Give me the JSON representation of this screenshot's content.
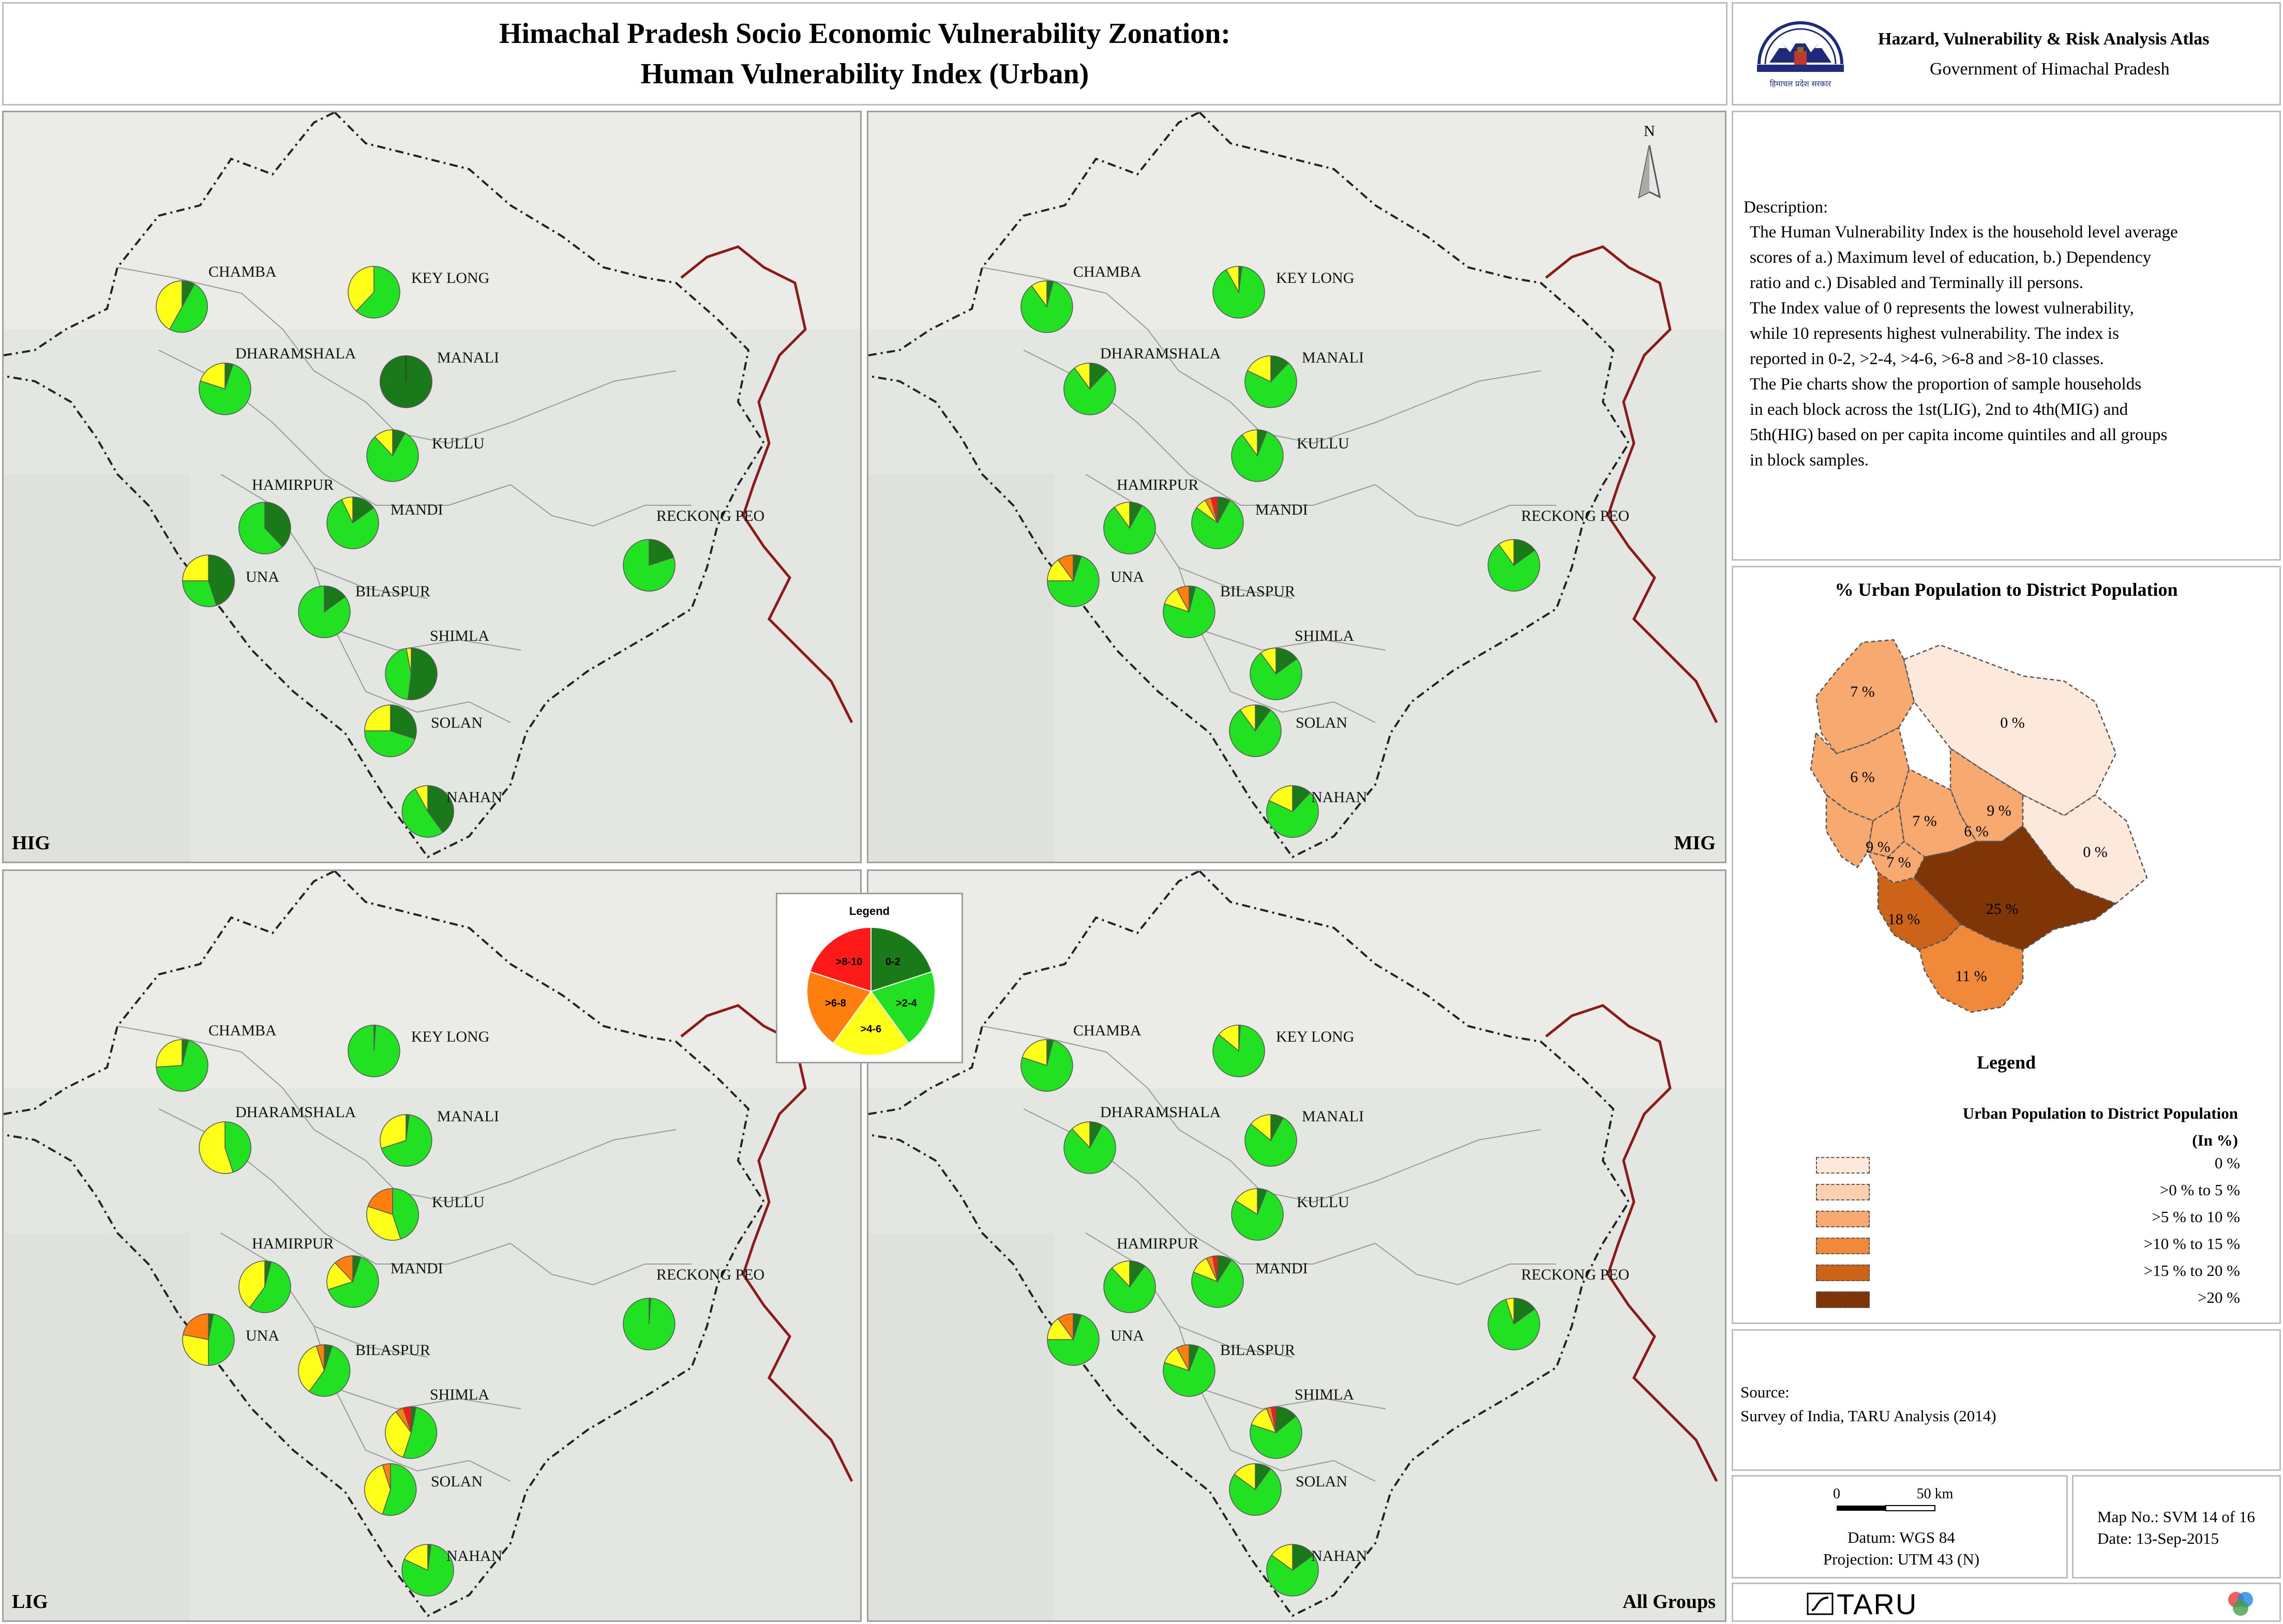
{
  "title": {
    "line1": "Himachal Pradesh Socio Economic Vulnerability Zonation:",
    "line2": "Human Vulnerability Index (Urban)"
  },
  "header": {
    "atlas": "Hazard, Vulnerability & Risk Analysis Atlas",
    "government": "Government of Himachal Pradesh",
    "emblem_caption": "हिमाचल प्रदेश सरकार"
  },
  "north_label": "N",
  "panels": [
    {
      "id": "hig",
      "label": "HIG"
    },
    {
      "id": "mig",
      "label": "MIG"
    },
    {
      "id": "lig",
      "label": "LIG"
    },
    {
      "id": "all",
      "label": "All Groups"
    }
  ],
  "class_legend": {
    "title": "Legend",
    "classes": [
      {
        "label": "0-2",
        "color": "#1a7a1a"
      },
      {
        "label": ">2-4",
        "color": "#22e022"
      },
      {
        "label": ">4-6",
        "color": "#ffff1a"
      },
      {
        "label": ">6-8",
        "color": "#ff7f0e"
      },
      {
        "label": ">8-10",
        "color": "#ff1a1a"
      }
    ]
  },
  "map_data": {
    "towns": [
      "CHAMBA",
      "KEY LONG",
      "DHARAMSHALA",
      "MANALI",
      "KULLU",
      "HAMIRPUR",
      "MANDI",
      "RECKONG PEO",
      "UNA",
      "BILASPUR",
      "SHIMLA",
      "SOLAN",
      "NAHAN"
    ],
    "pie_shares_order": [
      "0-2",
      ">2-4",
      ">4-6",
      ">6-8",
      ">8-10"
    ],
    "panels": {
      "hig": {
        "CHAMBA": [
          0.08,
          0.5,
          0.42,
          0,
          0
        ],
        "KEY LONG": [
          0,
          0.62,
          0.38,
          0,
          0
        ],
        "DHARAMSHALA": [
          0.05,
          0.75,
          0.2,
          0,
          0
        ],
        "MANALI": [
          1,
          0,
          0,
          0,
          0
        ],
        "KULLU": [
          0.08,
          0.8,
          0.12,
          0,
          0
        ],
        "HAMIRPUR": [
          0.38,
          0.62,
          0,
          0,
          0
        ],
        "MANDI": [
          0.15,
          0.78,
          0.07,
          0,
          0
        ],
        "RECKONG PEO": [
          0.2,
          0.8,
          0,
          0,
          0
        ],
        "UNA": [
          0.45,
          0.3,
          0.25,
          0,
          0
        ],
        "BILASPUR": [
          0.15,
          0.85,
          0,
          0,
          0
        ],
        "SHIMLA": [
          0.52,
          0.45,
          0.03,
          0,
          0
        ],
        "SOLAN": [
          0.3,
          0.45,
          0.25,
          0,
          0
        ],
        "NAHAN": [
          0.4,
          0.52,
          0.08,
          0,
          0
        ]
      },
      "mig": {
        "CHAMBA": [
          0.04,
          0.86,
          0.1,
          0,
          0
        ],
        "KEY LONG": [
          0.02,
          0.9,
          0.08,
          0,
          0
        ],
        "DHARAMSHALA": [
          0.12,
          0.78,
          0.1,
          0,
          0
        ],
        "MANALI": [
          0.12,
          0.7,
          0.18,
          0,
          0
        ],
        "KULLU": [
          0.06,
          0.84,
          0.1,
          0,
          0
        ],
        "HAMIRPUR": [
          0.08,
          0.82,
          0.1,
          0,
          0
        ],
        "MANDI": [
          0.08,
          0.77,
          0.07,
          0.04,
          0.04
        ],
        "RECKONG PEO": [
          0.15,
          0.75,
          0.1,
          0,
          0
        ],
        "UNA": [
          0.05,
          0.7,
          0.15,
          0.1,
          0
        ],
        "BILASPUR": [
          0.04,
          0.76,
          0.12,
          0.08,
          0
        ],
        "SHIMLA": [
          0.15,
          0.75,
          0.1,
          0,
          0
        ],
        "SOLAN": [
          0.1,
          0.8,
          0.1,
          0,
          0
        ],
        "NAHAN": [
          0.12,
          0.7,
          0.18,
          0,
          0
        ]
      },
      "lig": {
        "CHAMBA": [
          0.04,
          0.7,
          0.26,
          0,
          0
        ],
        "KEY LONG": [
          0.01,
          0.99,
          0,
          0,
          0
        ],
        "DHARAMSHALA": [
          0,
          0.45,
          0.55,
          0,
          0
        ],
        "MANALI": [
          0.02,
          0.68,
          0.3,
          0,
          0
        ],
        "KULLU": [
          0,
          0.45,
          0.35,
          0.2,
          0
        ],
        "HAMIRPUR": [
          0.04,
          0.56,
          0.4,
          0,
          0
        ],
        "MANDI": [
          0.05,
          0.65,
          0.18,
          0.12,
          0
        ],
        "RECKONG PEO": [
          0.01,
          0.99,
          0,
          0,
          0
        ],
        "UNA": [
          0.03,
          0.47,
          0.28,
          0.22,
          0
        ],
        "BILASPUR": [
          0.05,
          0.55,
          0.35,
          0.05,
          0
        ],
        "SHIMLA": [
          0.03,
          0.52,
          0.35,
          0.05,
          0.05
        ],
        "SOLAN": [
          0,
          0.55,
          0.4,
          0.05,
          0
        ],
        "NAHAN": [
          0.02,
          0.8,
          0.18,
          0,
          0
        ]
      },
      "all": {
        "CHAMBA": [
          0.04,
          0.76,
          0.2,
          0,
          0
        ],
        "KEY LONG": [
          0.01,
          0.85,
          0.14,
          0,
          0
        ],
        "DHARAMSHALA": [
          0.08,
          0.8,
          0.12,
          0,
          0
        ],
        "MANALI": [
          0.08,
          0.78,
          0.14,
          0,
          0
        ],
        "KULLU": [
          0.06,
          0.78,
          0.16,
          0,
          0
        ],
        "HAMIRPUR": [
          0.1,
          0.78,
          0.12,
          0,
          0
        ],
        "MANDI": [
          0.09,
          0.72,
          0.12,
          0.04,
          0.03
        ],
        "RECKONG PEO": [
          0.15,
          0.8,
          0.05,
          0,
          0
        ],
        "UNA": [
          0.05,
          0.7,
          0.15,
          0.1,
          0
        ],
        "BILASPUR": [
          0.06,
          0.74,
          0.12,
          0.08,
          0
        ],
        "SHIMLA": [
          0.14,
          0.66,
          0.14,
          0.03,
          0.03
        ],
        "SOLAN": [
          0.1,
          0.75,
          0.15,
          0,
          0
        ],
        "NAHAN": [
          0.15,
          0.7,
          0.15,
          0,
          0
        ]
      }
    }
  },
  "description": {
    "title": "Description:",
    "text": "The Human Vulnerability Index is the household level average\nscores of a.) Maximum level of education, b.) Dependency\nratio and c.) Disabled and Terminally ill persons.\nThe Index value of 0 represents the lowest vulnerability,\nwhile 10 represents highest vulnerability. The index is\nreported in 0-2, >2-4, >4-6, >6-8 and >8-10 classes.\nThe Pie charts show the proportion of sample households\nin each block across the 1st(LIG), 2nd to 4th(MIG) and\n5th(HIG) based on per capita income quintiles and all groups\nin block samples."
  },
  "inset_map": {
    "title": "% Urban Population to District Population",
    "legend_title": "Legend",
    "legend_heading_1": "Urban Population to District Population",
    "legend_heading_2": "(In %)",
    "district_labels": [
      "7 %",
      "0 %",
      "6 %",
      "7 %",
      "6 %",
      "9 %",
      "0 %",
      "9 %",
      "7 %",
      "18 %",
      "25 %",
      "11 %"
    ],
    "classes": [
      {
        "label": "0 %",
        "color": "#fde9dc"
      },
      {
        "label": ">0 % to 5 %",
        "color": "#fbd0b0"
      },
      {
        "label": ">5 % to 10 %",
        "color": "#f7a970"
      },
      {
        "label": ">10 % to 15 %",
        "color": "#f08a3a"
      },
      {
        "label": ">15 % to 20 %",
        "color": "#cc6318"
      },
      {
        "label": ">20 %",
        "color": "#7f3506"
      }
    ]
  },
  "source": {
    "label": "Source:",
    "text": "Survey of India, TARU Analysis (2014)"
  },
  "scale": {
    "zero": "0",
    "distance": "50 km",
    "datum": "Datum: WGS 84",
    "projection": "Projection: UTM 43 (N)"
  },
  "map_info": {
    "map_no": "Map No.: SVM 14 of 16",
    "date": "Date: 13-Sep-2015"
  },
  "logo": {
    "text": "TARU"
  }
}
